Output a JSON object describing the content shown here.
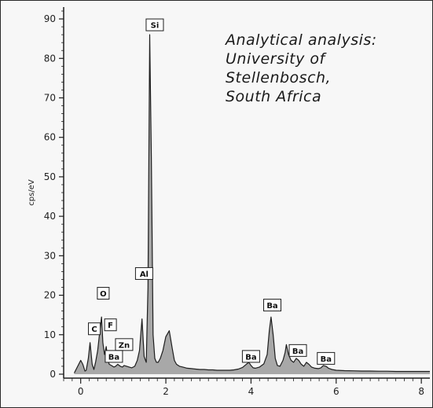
{
  "annotation": [
    "Analytical analysis:",
    "University of",
    "Stellenbosch,",
    "South Africa"
  ],
  "chart_data": {
    "type": "area",
    "title": "",
    "xlabel": "",
    "ylabel": "cps/eV",
    "xlim": [
      -0.4,
      8.2
    ],
    "ylim": [
      -1,
      93
    ],
    "x_ticks": [
      0,
      2,
      4,
      6,
      8
    ],
    "x_tick_labels": [
      "0",
      "2",
      "4",
      "6",
      "8"
    ],
    "y_ticks": [
      0,
      10,
      20,
      30,
      40,
      50,
      60,
      70,
      80,
      90
    ],
    "y_tick_labels": [
      "0",
      "10",
      "20",
      "30",
      "40",
      "50",
      "60",
      "70",
      "80",
      "90"
    ],
    "grid": false,
    "fill_color": "#a8a8a8",
    "line_color": "#1e1e1e",
    "series": [
      {
        "x": [
          -0.15,
          0,
          0.05,
          0.1,
          0.13,
          0.18,
          0.22,
          0.27,
          0.31,
          0.35,
          0.4,
          0.45,
          0.49,
          0.52,
          0.56,
          0.6,
          0.63,
          0.67,
          0.72,
          0.78,
          0.82,
          0.87,
          0.93,
          0.98,
          1.02,
          1.08,
          1.14,
          1.2,
          1.27,
          1.33,
          1.38,
          1.44,
          1.49,
          1.54,
          1.58,
          1.62,
          1.66,
          1.7,
          1.74,
          1.78,
          1.82,
          1.87,
          1.93,
          2.0,
          2.08,
          2.15,
          2.2,
          2.25,
          2.32,
          2.4,
          2.5,
          2.6,
          2.7,
          2.8,
          2.9,
          3.0,
          3.1,
          3.2,
          3.3,
          3.4,
          3.5,
          3.6,
          3.7,
          3.8,
          3.9,
          3.95,
          4.0,
          4.05,
          4.1,
          4.2,
          4.3,
          4.38,
          4.43,
          4.47,
          4.52,
          4.57,
          4.62,
          4.68,
          4.75,
          4.8,
          4.83,
          4.88,
          4.94,
          5.0,
          5.06,
          5.12,
          5.18,
          5.24,
          5.3,
          5.36,
          5.42,
          5.5,
          5.58,
          5.64,
          5.7,
          5.76,
          5.82,
          5.9,
          6.0,
          6.2,
          6.4,
          6.6,
          6.8,
          7.0,
          7.2,
          7.4,
          7.6,
          7.8,
          8.0,
          8.2
        ],
        "y": [
          0.3,
          3.5,
          2.5,
          0.8,
          1.0,
          4.0,
          8.0,
          2.5,
          1.2,
          3.0,
          6.0,
          11.0,
          14.5,
          8.0,
          5.0,
          7.0,
          4.0,
          2.5,
          2.2,
          1.8,
          2.0,
          2.5,
          2.0,
          1.8,
          2.2,
          2.0,
          1.8,
          1.6,
          2.0,
          3.5,
          6.0,
          14.0,
          4.5,
          3.0,
          22.0,
          86.0,
          55.0,
          10.0,
          4.0,
          3.0,
          3.0,
          4.0,
          6.0,
          9.5,
          11.0,
          6.5,
          3.5,
          2.5,
          2.0,
          1.8,
          1.5,
          1.4,
          1.3,
          1.2,
          1.2,
          1.1,
          1.1,
          1.0,
          1.0,
          1.0,
          1.0,
          1.1,
          1.3,
          1.7,
          2.6,
          3.0,
          2.2,
          1.6,
          1.5,
          1.8,
          2.6,
          5.0,
          11.0,
          14.5,
          10.0,
          4.0,
          2.2,
          2.0,
          3.5,
          5.5,
          7.5,
          5.0,
          3.5,
          3.0,
          4.0,
          3.5,
          2.5,
          2.0,
          3.0,
          2.5,
          1.8,
          1.5,
          1.4,
          1.6,
          2.2,
          2.0,
          1.5,
          1.2,
          1.0,
          0.9,
          0.85,
          0.8,
          0.8,
          0.75,
          0.75,
          0.7,
          0.7,
          0.7,
          0.7,
          0.7
        ]
      }
    ],
    "peak_labels": [
      {
        "text": "Si",
        "x": 1.74,
        "y": 88.5
      },
      {
        "text": "Al",
        "x": 1.49,
        "y": 25.5
      },
      {
        "text": "O",
        "x": 0.53,
        "y": 20.5
      },
      {
        "text": "F",
        "x": 0.7,
        "y": 12.5
      },
      {
        "text": "C",
        "x": 0.32,
        "y": 11.5
      },
      {
        "text": "Zn",
        "x": 1.02,
        "y": 7.5
      },
      {
        "text": "Ba",
        "x": 0.78,
        "y": 4.5
      },
      {
        "text": "Ba",
        "x": 4.5,
        "y": 17.5
      },
      {
        "text": "Ba",
        "x": 4.0,
        "y": 4.5
      },
      {
        "text": "Ba",
        "x": 5.1,
        "y": 6.0
      },
      {
        "text": "Ba",
        "x": 5.76,
        "y": 4.0
      }
    ]
  }
}
